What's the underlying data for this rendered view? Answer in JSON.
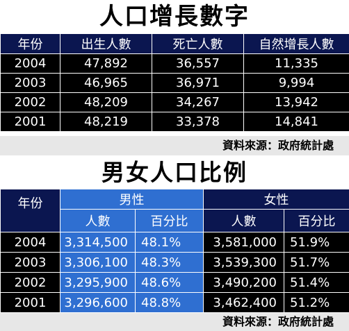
{
  "banner1": "人口增長數字",
  "table1": {
    "headers": [
      "年份",
      "出生人數",
      "死亡人數",
      "自然增長人數"
    ],
    "rows": [
      [
        "2004",
        "47,892",
        "36,557",
        "11,335"
      ],
      [
        "2003",
        "46,965",
        "36,971",
        "9,994"
      ],
      [
        "2002",
        "48,209",
        "34,267",
        "13,942"
      ],
      [
        "2001",
        "48,219",
        "33,378",
        "14,841"
      ]
    ]
  },
  "source1": "資料來源：政府統計處",
  "banner2": "男女人口比例",
  "table2": {
    "year_header": "年份",
    "male_header": "男性",
    "female_header": "女性",
    "count_header": "人數",
    "pct_header": "百分比",
    "rows": [
      [
        "2004",
        "3,314,500",
        "48.1%",
        "3,581,000",
        "51.9%"
      ],
      [
        "2003",
        "3,306,100",
        "48.3%",
        "3,539,300",
        "51.7%"
      ],
      [
        "2002",
        "3,295,900",
        "48.6%",
        "3,490,200",
        "51.4%"
      ],
      [
        "2001",
        "3,296,600",
        "48.8%",
        "3,462,400",
        "51.2%"
      ]
    ]
  },
  "source2": "資料來源：政府統計處",
  "colors": {
    "header_navy": "#0b1650",
    "male_blue": "#2f6fd1",
    "row_black": "#000000",
    "source_gray": "#e7e7e7"
  }
}
